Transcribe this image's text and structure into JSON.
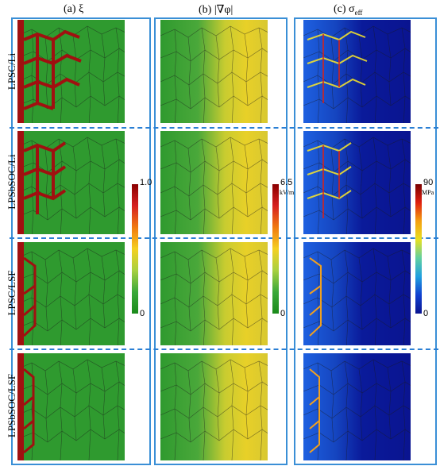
{
  "columns": [
    {
      "label": "(a) ξ"
    },
    {
      "label": "(b) |∇φ|"
    },
    {
      "label": "(c) σ",
      "subscript": "eff"
    }
  ],
  "rows": [
    {
      "label": "LPSC/Li"
    },
    {
      "label": "LPSbSOC/Li"
    },
    {
      "label": "LPSC/LSF"
    },
    {
      "label": "LPSbSOC/LSF"
    }
  ],
  "colorbars": [
    {
      "max": "1.0",
      "min": "0",
      "unit": ""
    },
    {
      "max": "6.5",
      "min": "0",
      "unit": "kV/m"
    },
    {
      "max": "90",
      "min": "0",
      "unit": "MPa"
    }
  ],
  "colors": {
    "frame": "#3a8fd6",
    "dendrite": "#a01010",
    "green": "#2f9a2f",
    "navy": "#0a1490"
  }
}
